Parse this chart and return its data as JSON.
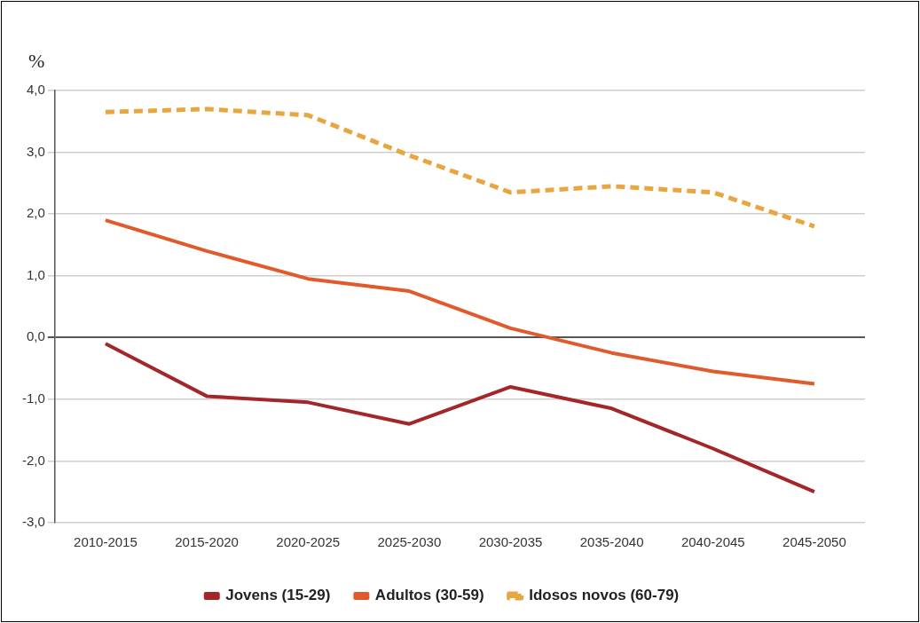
{
  "chart_data": {
    "type": "line",
    "ylabel": "%",
    "categories": [
      "2010-2015",
      "2015-2020",
      "2020-2025",
      "2025-2030",
      "2030-2035",
      "2035-2040",
      "2040-2045",
      "2045-2050"
    ],
    "series": [
      {
        "name": "Jovens (15-29)",
        "color": "#a3262a",
        "values": [
          -0.1,
          -0.95,
          -1.05,
          -1.4,
          -0.8,
          -1.15,
          -1.8,
          -2.5
        ]
      },
      {
        "name": "Adultos (30-59)",
        "color": "#e05a2b",
        "values": [
          1.9,
          1.4,
          0.95,
          0.75,
          0.15,
          -0.25,
          -0.55,
          -0.75
        ]
      },
      {
        "name": "Idosos novos (60-79)",
        "color": "#e8a640",
        "line_style": "dashed",
        "values": [
          3.65,
          3.7,
          3.6,
          2.95,
          2.35,
          2.45,
          2.35,
          1.8
        ]
      }
    ],
    "ylim": [
      -3,
      4
    ],
    "yticks": [
      {
        "value": -3,
        "label": "-3,0"
      },
      {
        "value": -2,
        "label": "-2,0"
      },
      {
        "value": -1,
        "label": "-1,0"
      },
      {
        "value": 0,
        "label": "0,0"
      },
      {
        "value": 1,
        "label": "1,0"
      },
      {
        "value": 2,
        "label": "2,0"
      },
      {
        "value": 3,
        "label": "3,0"
      },
      {
        "value": 4,
        "label": "4,0"
      }
    ],
    "grid": "y",
    "legend": "bottom",
    "marker": "none",
    "line_style": "solid"
  }
}
